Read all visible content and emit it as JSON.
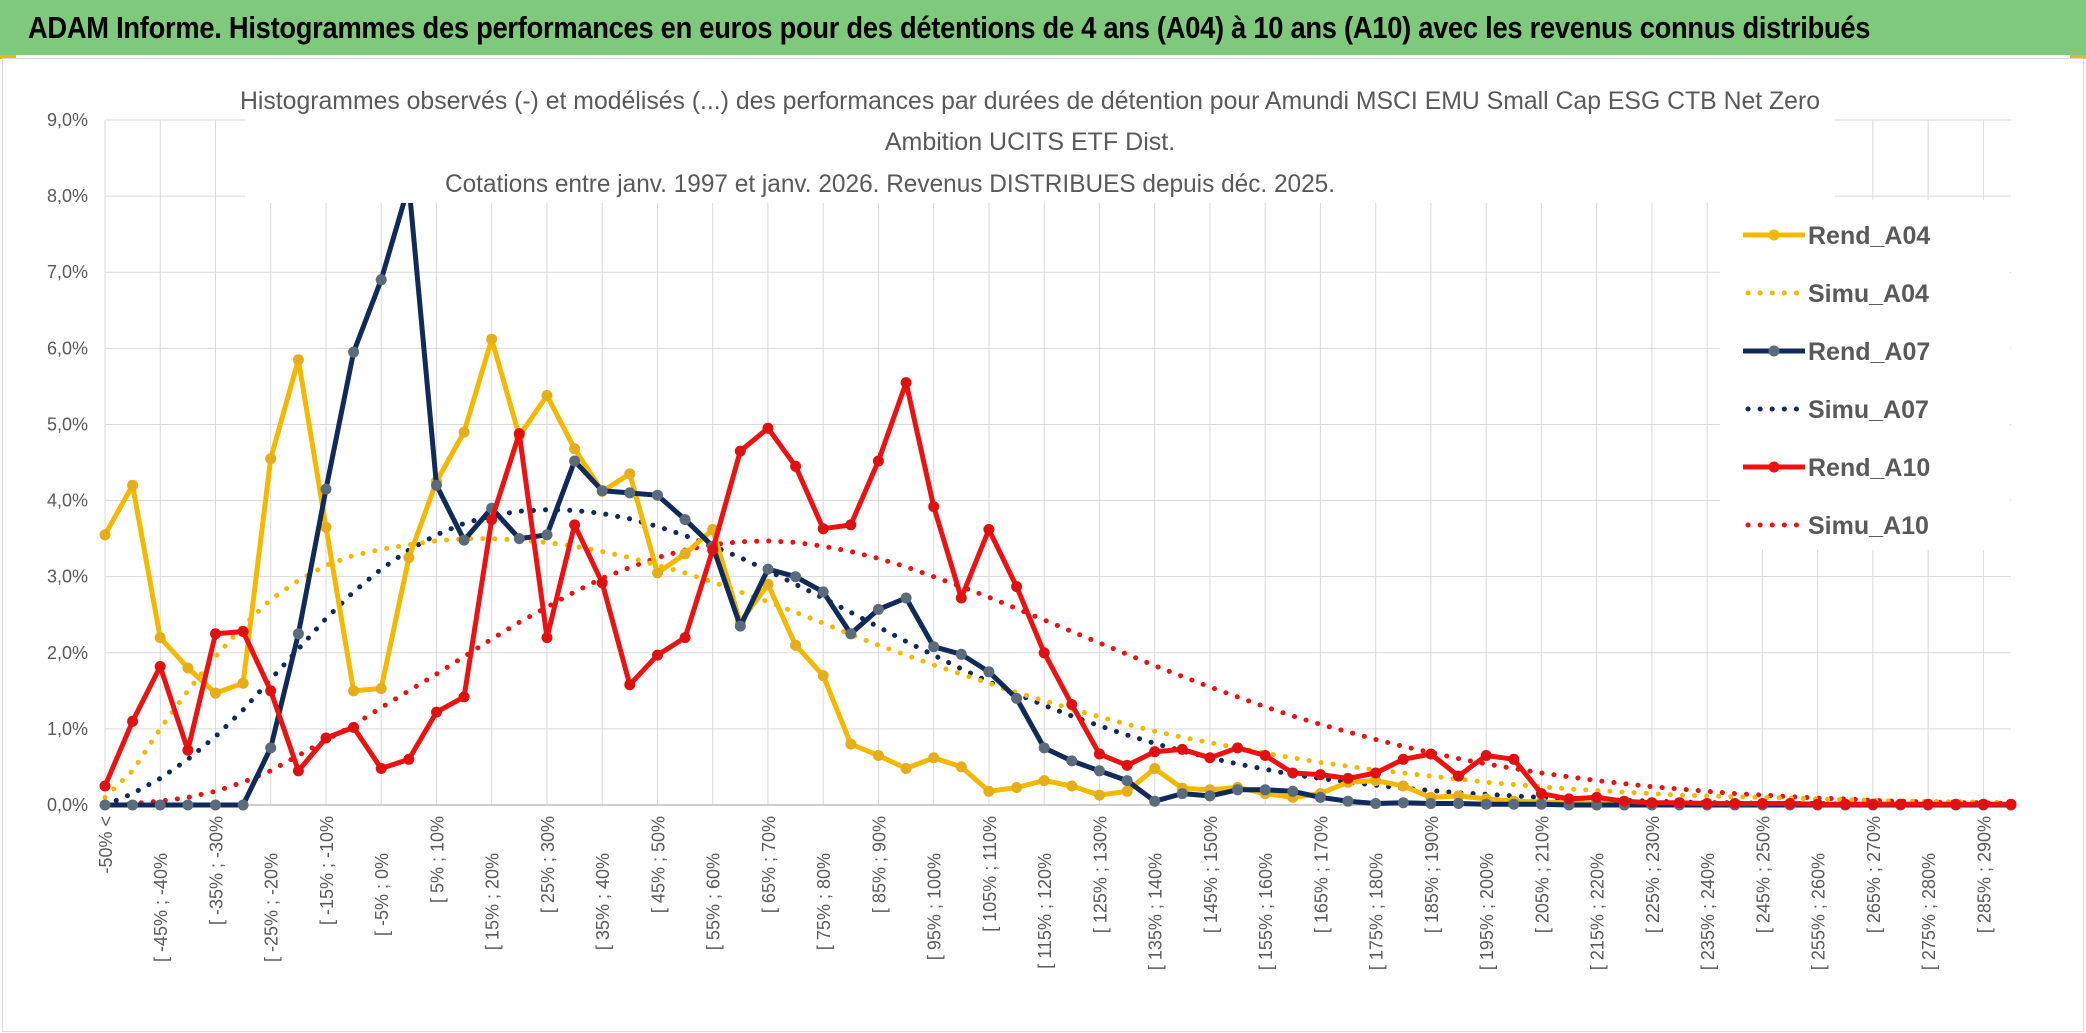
{
  "banner": {
    "title": "ADAM Informe. Histogrammes des performances en euros pour des détentions de 4 ans (A04) à 10 ans (A10) avec les revenus connus distribués"
  },
  "colors": {
    "banner_bg": "#7ec97c",
    "Rend_A04": "#f5b800",
    "Simu_A04": "#f5b800",
    "Rend_A07": "#102a5a",
    "Simu_A07": "#102a5a",
    "Rend_A10": "#ee1111",
    "Simu_A10": "#ee1111",
    "grid": "#d9d9d9"
  },
  "chart_data": {
    "type": "line",
    "title_lines": [
      "Histogrammes observés (-) et modélisés (...) des performances par durées de détention pour Amundi MSCI EMU Small Cap ESG CTB Net Zero",
      "Ambition UCITS ETF Dist.",
      "Cotations entre janv. 1997 et janv. 2026. Revenus DISTRIBUES depuis déc. 2025."
    ],
    "ylim": [
      0,
      9
    ],
    "y_ticks": [
      "0,0%",
      "1,0%",
      "2,0%",
      "3,0%",
      "4,0%",
      "5,0%",
      "6,0%",
      "7,0%",
      "8,0%",
      "9,0%"
    ],
    "grid": true,
    "legend_position": "right",
    "x_labels": [
      "-50% <",
      "[ -45% ; -40%",
      "[ -35% ; -30%",
      "[ -25% ; -20%",
      "[ -15% ; -10%",
      "[ -5% ; 0%",
      "[ 5% ; 10%",
      "[ 15% ; 20%",
      "[ 25% ; 30%",
      "[ 35% ; 40%",
      "[ 45% ; 50%",
      "[ 55% ; 60%",
      "[ 65% ; 70%",
      "[ 75% ; 80%",
      "[ 85% ; 90%",
      "[ 95% ; 100%",
      "[ 105% ; 110%",
      "[ 115% ; 120%",
      "[ 125% ; 130%",
      "[ 135% ; 140%",
      "[ 145% ; 150%",
      "[ 155% ; 160%",
      "[ 165% ; 170%",
      "[ 175% ; 180%",
      "[ 185% ; 190%",
      "[ 195% ; 200%",
      "[ 205% ; 210%",
      "[ 215% ; 220%",
      "[ 225% ; 230%",
      "[ 235% ; 240%",
      "[ 245% ; 250%",
      "[ 255% ; 260%",
      "[ 265% ; 270%",
      "[ 275% ; 280%",
      "[ 285% ; 290%"
    ],
    "series": [
      {
        "name": "Rend_A04",
        "style": "solid",
        "markers": true,
        "values": [
          3.55,
          4.2,
          2.2,
          1.8,
          1.47,
          1.6,
          4.55,
          5.85,
          3.65,
          1.5,
          1.53,
          3.25,
          4.25,
          4.9,
          6.12,
          4.85,
          5.38,
          4.68,
          4.12,
          4.35,
          3.05,
          3.3,
          3.62,
          2.4,
          2.9,
          2.1,
          1.7,
          0.8,
          0.65,
          0.48,
          0.62,
          0.5,
          0.18,
          0.23,
          0.32,
          0.25,
          0.13,
          0.18,
          0.48,
          0.22,
          0.2,
          0.23,
          0.15,
          0.1,
          0.15,
          0.3,
          0.32,
          0.25,
          0.1,
          0.12,
          0.08,
          0.05,
          0.04,
          0.03,
          0.02,
          0.02,
          0.02,
          0.01,
          0.01,
          0.01,
          0.01,
          0.0,
          0.0,
          0.0,
          0.0,
          0.0,
          0.0,
          0.0,
          0.0,
          0.0
        ]
      },
      {
        "name": "Simu_A04",
        "style": "dotted",
        "markers": false,
        "values": [
          0.1,
          0.45,
          1.0,
          1.5,
          1.95,
          2.35,
          2.7,
          2.95,
          3.15,
          3.28,
          3.36,
          3.42,
          3.47,
          3.5,
          3.5,
          3.48,
          3.45,
          3.4,
          3.33,
          3.25,
          3.15,
          3.05,
          2.93,
          2.8,
          2.67,
          2.53,
          2.39,
          2.24,
          2.1,
          1.97,
          1.84,
          1.72,
          1.6,
          1.48,
          1.37,
          1.26,
          1.16,
          1.06,
          0.97,
          0.89,
          0.82,
          0.75,
          0.68,
          0.62,
          0.56,
          0.51,
          0.46,
          0.42,
          0.38,
          0.34,
          0.3,
          0.27,
          0.24,
          0.21,
          0.19,
          0.17,
          0.15,
          0.13,
          0.12,
          0.11,
          0.1,
          0.09,
          0.08,
          0.07,
          0.06,
          0.05,
          0.05,
          0.04,
          0.04,
          0.03
        ]
      },
      {
        "name": "Rend_A07",
        "style": "solid",
        "markers": true,
        "values": [
          0.0,
          0.0,
          0.0,
          0.0,
          0.0,
          0.0,
          0.75,
          2.25,
          4.15,
          5.95,
          6.9,
          8.2,
          4.2,
          3.48,
          3.9,
          3.5,
          3.55,
          4.52,
          4.13,
          4.1,
          4.07,
          3.75,
          3.4,
          2.35,
          3.1,
          3.0,
          2.8,
          2.25,
          2.57,
          2.72,
          2.08,
          1.98,
          1.75,
          1.4,
          0.75,
          0.58,
          0.45,
          0.32,
          0.05,
          0.15,
          0.12,
          0.2,
          0.2,
          0.18,
          0.1,
          0.05,
          0.02,
          0.03,
          0.02,
          0.02,
          0.01,
          0.01,
          0.01,
          0.0,
          0.0,
          0.0,
          0.0,
          0.0,
          0.0,
          0.0,
          0.0,
          0.0,
          0.0,
          0.0,
          0.0,
          0.0,
          0.0,
          0.0,
          0.0,
          0.0
        ]
      },
      {
        "name": "Simu_A07",
        "style": "dotted",
        "markers": false,
        "values": [
          0.0,
          0.15,
          0.35,
          0.6,
          0.9,
          1.25,
          1.65,
          2.05,
          2.45,
          2.8,
          3.1,
          3.35,
          3.55,
          3.7,
          3.8,
          3.86,
          3.88,
          3.87,
          3.83,
          3.76,
          3.66,
          3.54,
          3.4,
          3.25,
          3.08,
          2.9,
          2.72,
          2.53,
          2.34,
          2.15,
          1.97,
          1.79,
          1.62,
          1.46,
          1.31,
          1.17,
          1.04,
          0.92,
          0.81,
          0.71,
          0.62,
          0.54,
          0.47,
          0.4,
          0.35,
          0.3,
          0.26,
          0.22,
          0.19,
          0.16,
          0.14,
          0.12,
          0.1,
          0.08,
          0.07,
          0.06,
          0.05,
          0.04,
          0.03,
          0.03,
          0.02,
          0.02,
          0.02,
          0.01,
          0.01,
          0.01,
          0.01,
          0.01,
          0.0,
          0.0
        ]
      },
      {
        "name": "Rend_A10",
        "style": "solid",
        "markers": true,
        "values": [
          0.25,
          1.1,
          1.82,
          0.72,
          2.25,
          2.28,
          1.5,
          0.45,
          0.88,
          1.02,
          0.48,
          0.6,
          1.22,
          1.42,
          3.75,
          4.88,
          2.2,
          3.68,
          2.92,
          1.58,
          1.97,
          2.2,
          3.35,
          4.65,
          4.95,
          4.45,
          3.63,
          3.68,
          4.52,
          5.55,
          3.92,
          2.72,
          3.62,
          2.87,
          2.0,
          1.32,
          0.67,
          0.52,
          0.7,
          0.73,
          0.62,
          0.75,
          0.65,
          0.42,
          0.4,
          0.35,
          0.42,
          0.6,
          0.67,
          0.38,
          0.65,
          0.6,
          0.15,
          0.08,
          0.1,
          0.05,
          0.03,
          0.03,
          0.02,
          0.02,
          0.02,
          0.02,
          0.01,
          0.01,
          0.01,
          0.01,
          0.01,
          0.01,
          0.01,
          0.01
        ]
      },
      {
        "name": "Simu_A10",
        "style": "dotted",
        "markers": false,
        "values": [
          0.0,
          0.02,
          0.05,
          0.1,
          0.18,
          0.3,
          0.45,
          0.65,
          0.85,
          1.05,
          1.28,
          1.5,
          1.72,
          1.95,
          2.18,
          2.4,
          2.6,
          2.8,
          2.98,
          3.12,
          3.25,
          3.35,
          3.42,
          3.46,
          3.47,
          3.45,
          3.4,
          3.33,
          3.24,
          3.13,
          3.0,
          2.87,
          2.73,
          2.58,
          2.43,
          2.28,
          2.13,
          1.98,
          1.83,
          1.69,
          1.55,
          1.42,
          1.29,
          1.17,
          1.06,
          0.96,
          0.86,
          0.77,
          0.69,
          0.61,
          0.54,
          0.48,
          0.42,
          0.37,
          0.32,
          0.28,
          0.24,
          0.21,
          0.18,
          0.15,
          0.13,
          0.11,
          0.09,
          0.08,
          0.06,
          0.05,
          0.04,
          0.03,
          0.03,
          0.02
        ]
      }
    ]
  }
}
